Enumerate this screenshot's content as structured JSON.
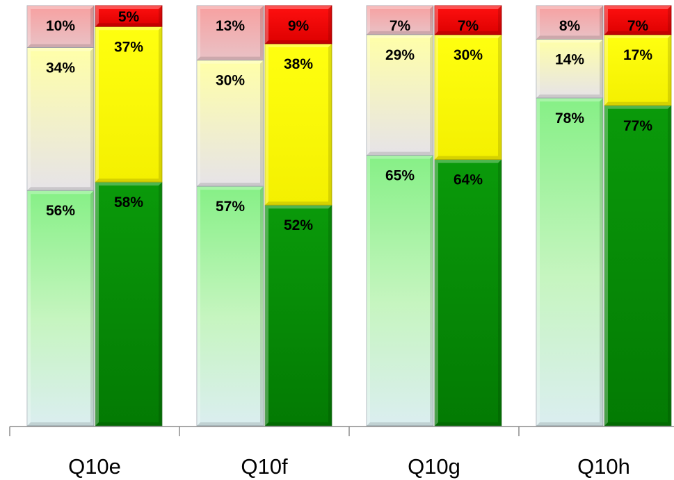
{
  "chart_data": {
    "type": "bar",
    "stacked": true,
    "categories": [
      "Q10e",
      "Q10f",
      "Q10g",
      "Q10h"
    ],
    "bars_per_category": 2,
    "ylim": [
      0,
      100
    ],
    "grid": false,
    "legend": "none",
    "groups": [
      {
        "category": "Q10e",
        "bars": [
          {
            "style": "light",
            "values": [
              56,
              34,
              10
            ],
            "labels": [
              "56%",
              "34%",
              "10%"
            ]
          },
          {
            "style": "dark",
            "values": [
              58,
              37,
              5
            ],
            "labels": [
              "58%",
              "37%",
              "5%"
            ]
          }
        ]
      },
      {
        "category": "Q10f",
        "bars": [
          {
            "style": "light",
            "values": [
              57,
              30,
              13
            ],
            "labels": [
              "57%",
              "30%",
              "13%"
            ]
          },
          {
            "style": "dark",
            "values": [
              52,
              38,
              9
            ],
            "labels": [
              "52%",
              "38%",
              "9%"
            ]
          }
        ]
      },
      {
        "category": "Q10g",
        "bars": [
          {
            "style": "light",
            "values": [
              65,
              29,
              7
            ],
            "labels": [
              "65%",
              "29%",
              "7%"
            ]
          },
          {
            "style": "dark",
            "values": [
              64,
              30,
              7
            ],
            "labels": [
              "64%",
              "30%",
              "7%"
            ]
          }
        ]
      },
      {
        "category": "Q10h",
        "bars": [
          {
            "style": "light",
            "values": [
              78,
              14,
              8
            ],
            "labels": [
              "78%",
              "14%",
              "8%"
            ]
          },
          {
            "style": "dark",
            "values": [
              77,
              17,
              7
            ],
            "labels": [
              "77%",
              "17%",
              "7%"
            ]
          }
        ]
      }
    ],
    "colors": {
      "light": [
        "#a8f2a0",
        "#fff9c4",
        "#f59b9b"
      ],
      "dark": [
        "#058a05",
        "#ffff00",
        "#ee0000"
      ]
    }
  }
}
